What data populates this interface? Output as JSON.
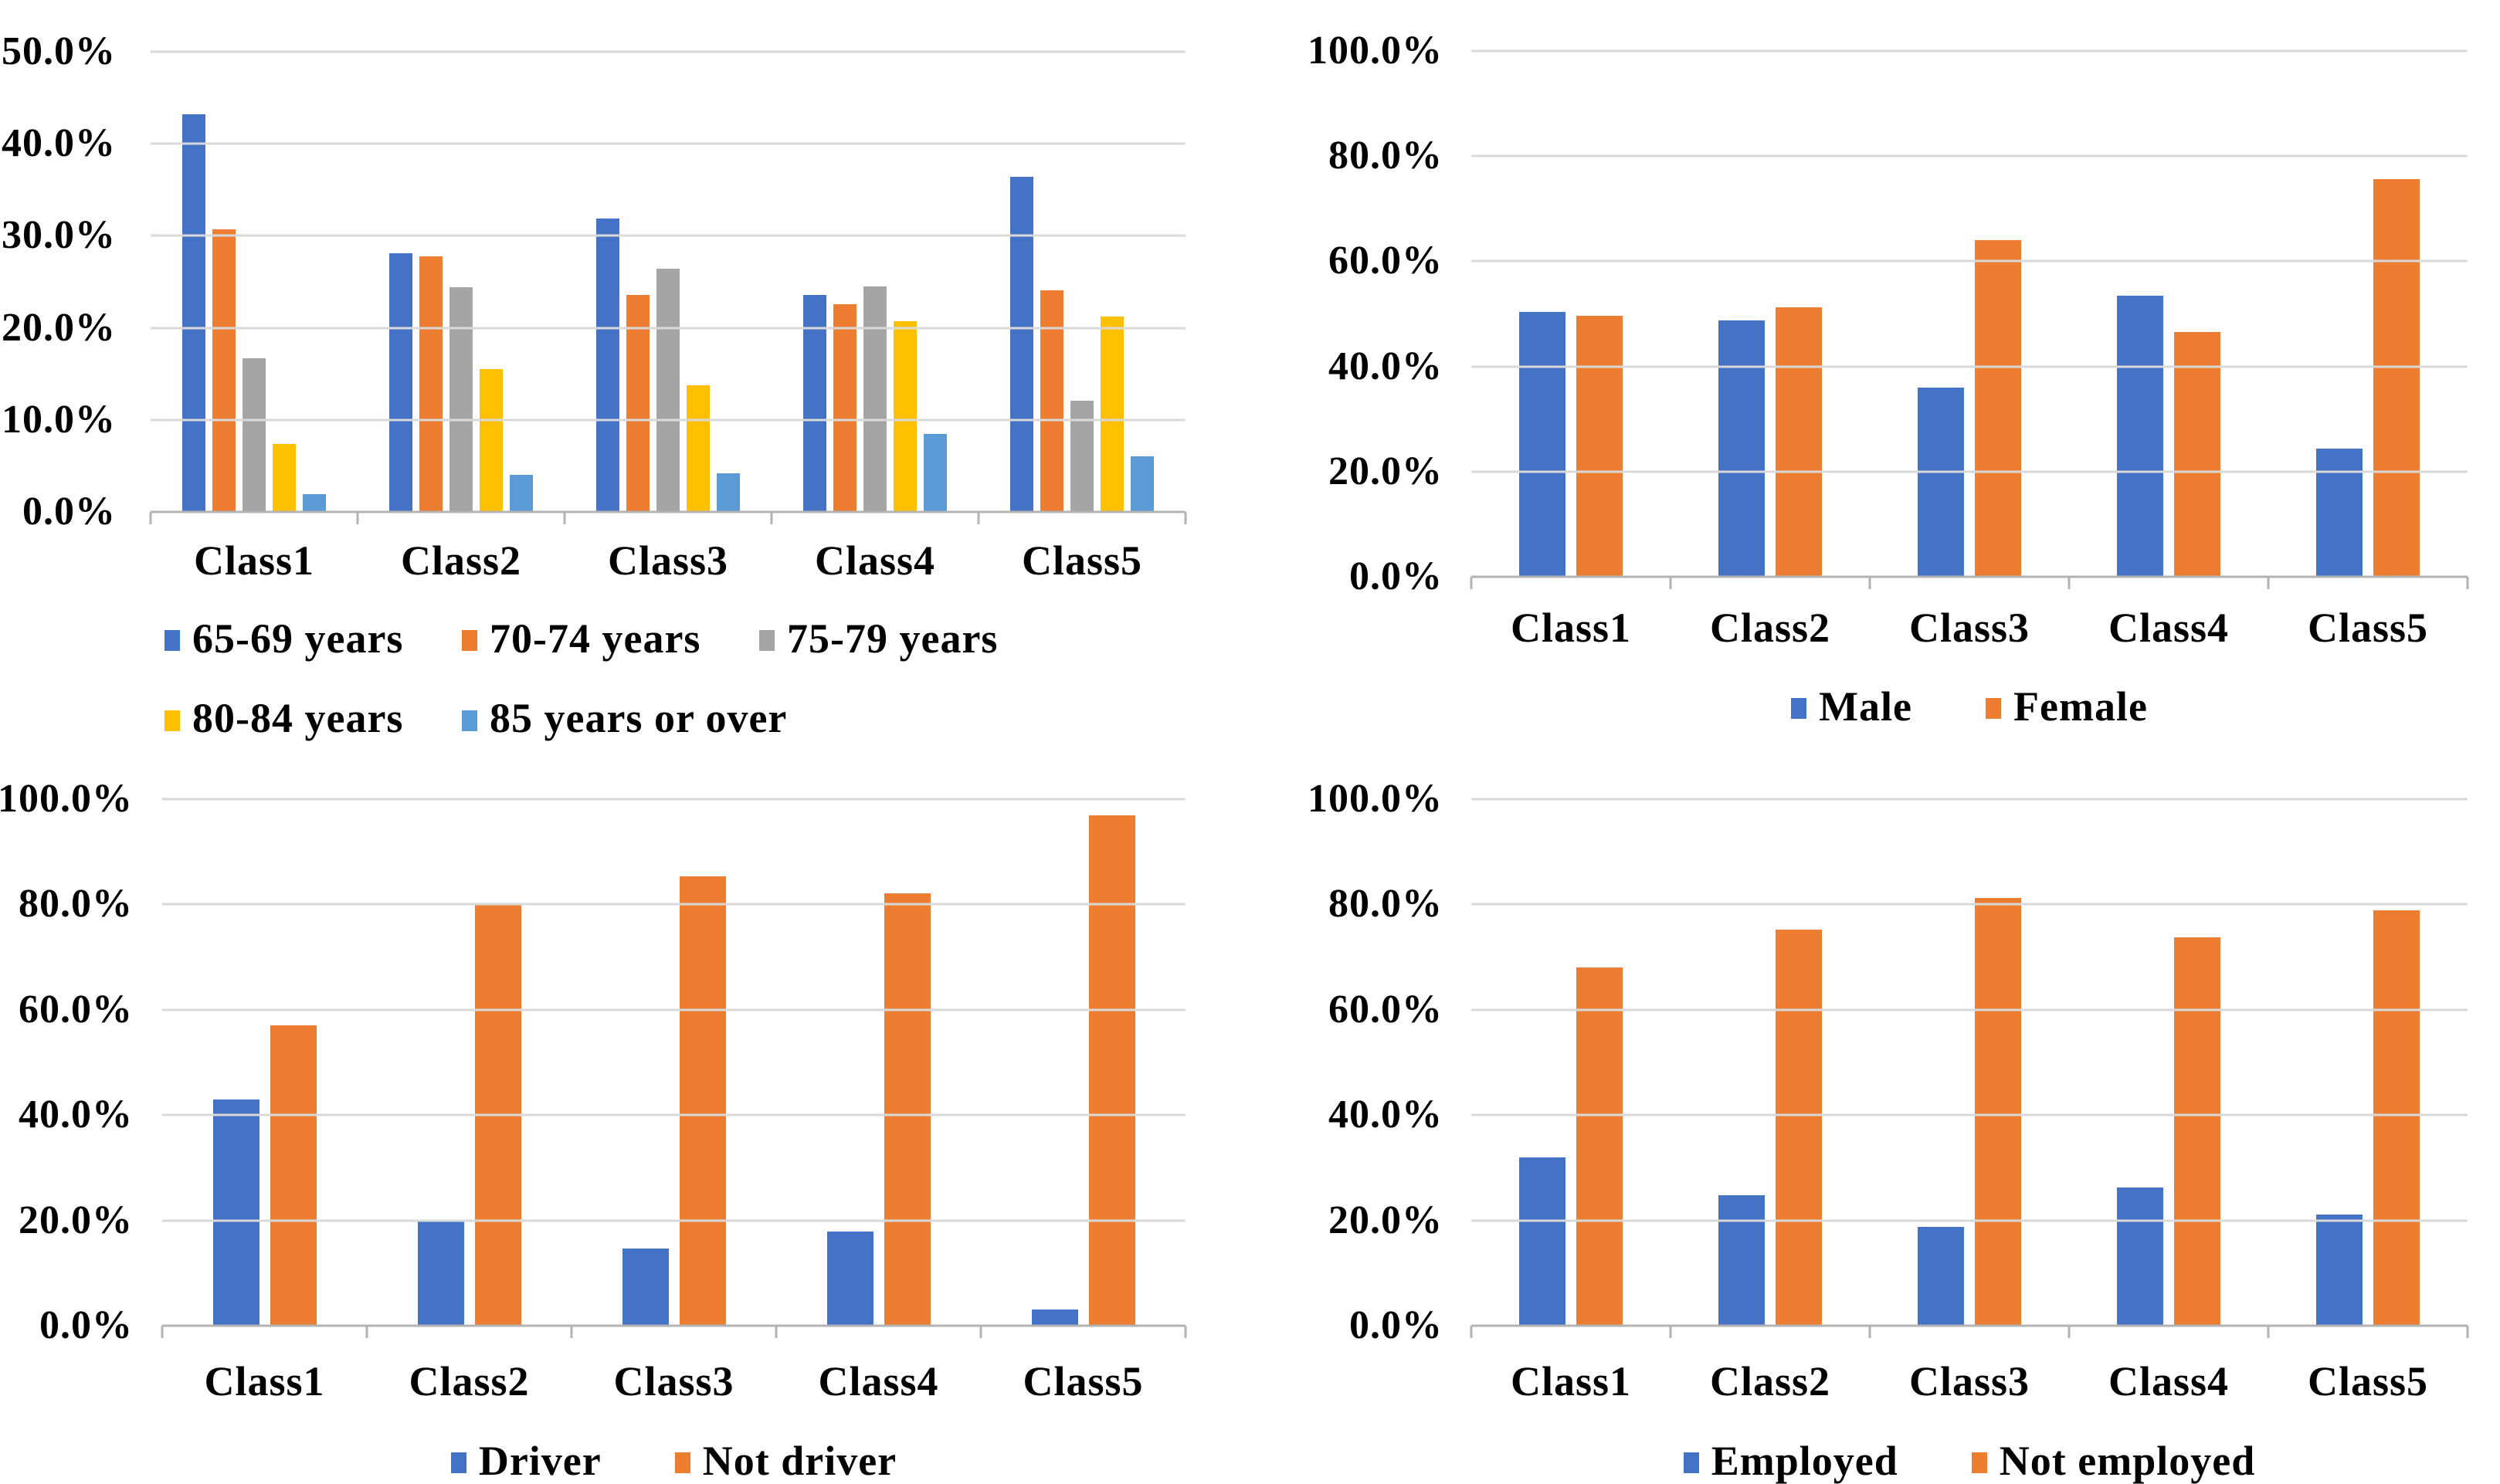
{
  "figure": {
    "background_color": "#FFFFFF",
    "text_color": "#000000",
    "gridline_color": "#D9D9D9",
    "axis_line_color": "#B3B3B3"
  },
  "palette": {
    "blue": "#4472C4",
    "orange": "#ED7D31",
    "gray": "#A5A5A5",
    "yellow": "#FFC000",
    "light_blue": "#5B9BD5"
  },
  "chart_data": [
    {
      "id": "age-group-by-class",
      "panel": "top-left",
      "type": "bar",
      "categories": [
        "Class1",
        "Class2",
        "Class3",
        "Class4",
        "Class5"
      ],
      "series": [
        {
          "name": "65-69 years",
          "color": "#4472C4",
          "values": [
            43.2,
            28.1,
            31.9,
            23.6,
            36.4
          ]
        },
        {
          "name": "70-74 years",
          "color": "#ED7D31",
          "values": [
            30.7,
            27.8,
            23.6,
            22.6,
            24.1
          ]
        },
        {
          "name": "75-79 years",
          "color": "#A5A5A5",
          "values": [
            16.7,
            24.4,
            26.4,
            24.5,
            12.1
          ]
        },
        {
          "name": "80-84 years",
          "color": "#FFC000",
          "values": [
            7.4,
            15.5,
            13.8,
            20.7,
            21.2
          ]
        },
        {
          "name": "85 years or over",
          "color": "#5B9BD5",
          "values": [
            1.9,
            4.0,
            4.2,
            8.5,
            6.0
          ]
        }
      ],
      "ylim": [
        0,
        50
      ],
      "yticks": [
        "0.0%",
        "10.0%",
        "20.0%",
        "30.0%",
        "40.0%",
        "50.0%"
      ],
      "grid": true,
      "legend_position": "bottom",
      "legend_rows": 2
    },
    {
      "id": "gender-by-class",
      "panel": "top-right",
      "type": "bar",
      "categories": [
        "Class1",
        "Class2",
        "Class3",
        "Class4",
        "Class5"
      ],
      "series": [
        {
          "name": "Male",
          "color": "#4472C4",
          "values": [
            50.3,
            48.7,
            36.0,
            53.4,
            24.4
          ]
        },
        {
          "name": "Female",
          "color": "#ED7D31",
          "values": [
            49.7,
            51.3,
            64.0,
            46.6,
            75.6
          ]
        }
      ],
      "ylim": [
        0,
        100
      ],
      "yticks": [
        "0.0%",
        "20.0%",
        "40.0%",
        "60.0%",
        "80.0%",
        "100.0%"
      ],
      "grid": true,
      "legend_position": "bottom",
      "legend_rows": 1
    },
    {
      "id": "driving-status-by-class",
      "panel": "bottom-left",
      "type": "bar",
      "categories": [
        "Class1",
        "Class2",
        "Class3",
        "Class4",
        "Class5"
      ],
      "series": [
        {
          "name": "Driver",
          "color": "#4472C4",
          "values": [
            43.0,
            20.0,
            14.6,
            17.9,
            3.1
          ]
        },
        {
          "name": "Not driver",
          "color": "#ED7D31",
          "values": [
            57.0,
            80.0,
            85.4,
            82.1,
            96.9
          ]
        }
      ],
      "ylim": [
        0,
        100
      ],
      "yticks": [
        "0.0%",
        "20.0%",
        "40.0%",
        "60.0%",
        "80.0%",
        "100.0%"
      ],
      "grid": true,
      "legend_position": "bottom",
      "legend_rows": 1
    },
    {
      "id": "employment-status-by-class",
      "panel": "bottom-right",
      "type": "bar",
      "categories": [
        "Class1",
        "Class2",
        "Class3",
        "Class4",
        "Class5"
      ],
      "series": [
        {
          "name": "Employed",
          "color": "#4472C4",
          "values": [
            32.0,
            24.8,
            18.7,
            26.3,
            21.1
          ]
        },
        {
          "name": "Not employed",
          "color": "#ED7D31",
          "values": [
            68.0,
            75.2,
            81.3,
            73.7,
            78.9
          ]
        }
      ],
      "ylim": [
        0,
        100
      ],
      "yticks": [
        "0.0%",
        "20.0%",
        "40.0%",
        "60.0%",
        "80.0%",
        "100.0%"
      ],
      "grid": true,
      "legend_position": "bottom",
      "legend_rows": 1
    }
  ]
}
